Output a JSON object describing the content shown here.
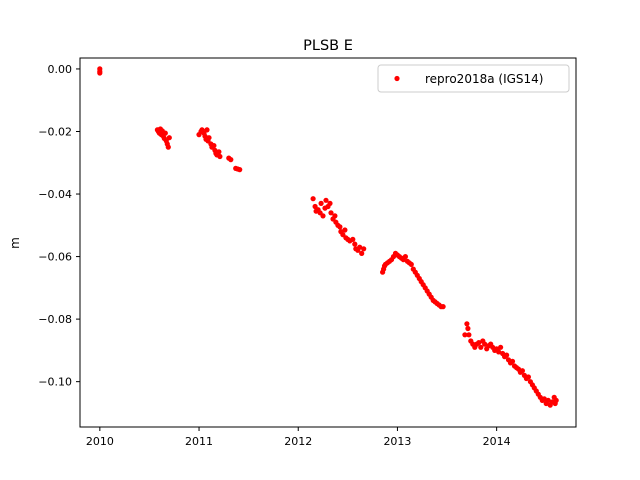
{
  "chart_data": {
    "type": "scatter",
    "title": "PLSB E",
    "xlabel": "",
    "ylabel": "m",
    "xlim": [
      2009.8,
      2014.8
    ],
    "ylim": [
      -0.1145,
      0.0035
    ],
    "x_ticks": [
      2010,
      2011,
      2012,
      2013,
      2014
    ],
    "y_ticks": [
      0.0,
      -0.02,
      -0.04,
      -0.06,
      -0.08,
      -0.1
    ],
    "x_tick_labels": [
      "2010",
      "2011",
      "2012",
      "2013",
      "2014"
    ],
    "y_tick_labels": [
      "0.00",
      "−0.02",
      "−0.04",
      "−0.06",
      "−0.08",
      "−0.10"
    ],
    "grid": false,
    "legend": {
      "position": "top-right",
      "entries": [
        "repro2018a (IGS14)"
      ]
    },
    "series": [
      {
        "name": "repro2018a (IGS14)",
        "color": "#ff0000",
        "marker": "circle",
        "points": [
          [
            2010.0,
            0.0
          ],
          [
            2010.0,
            -0.0008
          ],
          [
            2010.0,
            -0.0013
          ],
          [
            2010.58,
            -0.0195
          ],
          [
            2010.59,
            -0.02
          ],
          [
            2010.6,
            -0.0205
          ],
          [
            2010.61,
            -0.0192
          ],
          [
            2010.62,
            -0.021
          ],
          [
            2010.63,
            -0.0198
          ],
          [
            2010.64,
            -0.0215
          ],
          [
            2010.65,
            -0.0222
          ],
          [
            2010.66,
            -0.0205
          ],
          [
            2010.67,
            -0.023
          ],
          [
            2010.68,
            -0.024
          ],
          [
            2010.69,
            -0.025
          ],
          [
            2010.7,
            -0.022
          ],
          [
            2011.0,
            -0.021
          ],
          [
            2011.02,
            -0.02
          ],
          [
            2011.03,
            -0.0195
          ],
          [
            2011.05,
            -0.0205
          ],
          [
            2011.06,
            -0.0215
          ],
          [
            2011.07,
            -0.0225
          ],
          [
            2011.08,
            -0.0195
          ],
          [
            2011.09,
            -0.023
          ],
          [
            2011.1,
            -0.022
          ],
          [
            2011.12,
            -0.024
          ],
          [
            2011.13,
            -0.025
          ],
          [
            2011.15,
            -0.0245
          ],
          [
            2011.16,
            -0.026
          ],
          [
            2011.17,
            -0.027
          ],
          [
            2011.18,
            -0.0275
          ],
          [
            2011.2,
            -0.0265
          ],
          [
            2011.21,
            -0.028
          ],
          [
            2011.3,
            -0.0285
          ],
          [
            2011.32,
            -0.029
          ],
          [
            2011.37,
            -0.0318
          ],
          [
            2011.39,
            -0.032
          ],
          [
            2011.41,
            -0.0322
          ],
          [
            2012.15,
            -0.0415
          ],
          [
            2012.17,
            -0.044
          ],
          [
            2012.18,
            -0.0455
          ],
          [
            2012.2,
            -0.045
          ],
          [
            2012.22,
            -0.046
          ],
          [
            2012.23,
            -0.043
          ],
          [
            2012.25,
            -0.047
          ],
          [
            2012.27,
            -0.0445
          ],
          [
            2012.28,
            -0.042
          ],
          [
            2012.3,
            -0.044
          ],
          [
            2012.32,
            -0.043
          ],
          [
            2012.33,
            -0.046
          ],
          [
            2012.35,
            -0.048
          ],
          [
            2012.37,
            -0.047
          ],
          [
            2012.38,
            -0.049
          ],
          [
            2012.4,
            -0.05
          ],
          [
            2012.42,
            -0.0505
          ],
          [
            2012.43,
            -0.052
          ],
          [
            2012.45,
            -0.053
          ],
          [
            2012.47,
            -0.0515
          ],
          [
            2012.48,
            -0.054
          ],
          [
            2012.5,
            -0.0545
          ],
          [
            2012.52,
            -0.055
          ],
          [
            2012.55,
            -0.0545
          ],
          [
            2012.57,
            -0.056
          ],
          [
            2012.58,
            -0.0575
          ],
          [
            2012.6,
            -0.058
          ],
          [
            2012.62,
            -0.057
          ],
          [
            2012.64,
            -0.059
          ],
          [
            2012.66,
            -0.0575
          ],
          [
            2012.85,
            -0.065
          ],
          [
            2012.86,
            -0.064
          ],
          [
            2012.87,
            -0.063
          ],
          [
            2012.88,
            -0.0625
          ],
          [
            2012.9,
            -0.062
          ],
          [
            2012.92,
            -0.0615
          ],
          [
            2012.94,
            -0.061
          ],
          [
            2012.96,
            -0.06
          ],
          [
            2012.98,
            -0.059
          ],
          [
            2013.0,
            -0.0595
          ],
          [
            2013.02,
            -0.06
          ],
          [
            2013.04,
            -0.0605
          ],
          [
            2013.06,
            -0.061
          ],
          [
            2013.08,
            -0.06
          ],
          [
            2013.1,
            -0.0615
          ],
          [
            2013.12,
            -0.062
          ],
          [
            2013.14,
            -0.0625
          ],
          [
            2013.16,
            -0.064
          ],
          [
            2013.18,
            -0.065
          ],
          [
            2013.2,
            -0.066
          ],
          [
            2013.22,
            -0.067
          ],
          [
            2013.24,
            -0.068
          ],
          [
            2013.26,
            -0.069
          ],
          [
            2013.28,
            -0.07
          ],
          [
            2013.3,
            -0.071
          ],
          [
            2013.32,
            -0.072
          ],
          [
            2013.34,
            -0.073
          ],
          [
            2013.36,
            -0.074
          ],
          [
            2013.38,
            -0.0745
          ],
          [
            2013.4,
            -0.075
          ],
          [
            2013.42,
            -0.0755
          ],
          [
            2013.44,
            -0.076
          ],
          [
            2013.46,
            -0.076
          ],
          [
            2013.68,
            -0.085
          ],
          [
            2013.7,
            -0.0815
          ],
          [
            2013.71,
            -0.083
          ],
          [
            2013.72,
            -0.085
          ],
          [
            2013.74,
            -0.087
          ],
          [
            2013.76,
            -0.088
          ],
          [
            2013.78,
            -0.089
          ],
          [
            2013.8,
            -0.088
          ],
          [
            2013.82,
            -0.0875
          ],
          [
            2013.84,
            -0.089
          ],
          [
            2013.86,
            -0.087
          ],
          [
            2013.88,
            -0.088
          ],
          [
            2013.9,
            -0.0895
          ],
          [
            2013.92,
            -0.0885
          ],
          [
            2013.94,
            -0.088
          ],
          [
            2013.96,
            -0.089
          ],
          [
            2013.98,
            -0.09
          ],
          [
            2014.0,
            -0.0895
          ],
          [
            2014.02,
            -0.0905
          ],
          [
            2014.04,
            -0.089
          ],
          [
            2014.06,
            -0.091
          ],
          [
            2014.08,
            -0.092
          ],
          [
            2014.1,
            -0.0915
          ],
          [
            2014.12,
            -0.093
          ],
          [
            2014.14,
            -0.094
          ],
          [
            2014.16,
            -0.0935
          ],
          [
            2014.18,
            -0.095
          ],
          [
            2014.2,
            -0.0955
          ],
          [
            2014.22,
            -0.096
          ],
          [
            2014.24,
            -0.097
          ],
          [
            2014.26,
            -0.0965
          ],
          [
            2014.28,
            -0.098
          ],
          [
            2014.3,
            -0.099
          ],
          [
            2014.32,
            -0.0985
          ],
          [
            2014.34,
            -0.1
          ],
          [
            2014.36,
            -0.101
          ],
          [
            2014.38,
            -0.102
          ],
          [
            2014.4,
            -0.103
          ],
          [
            2014.42,
            -0.104
          ],
          [
            2014.44,
            -0.105
          ],
          [
            2014.46,
            -0.106
          ],
          [
            2014.48,
            -0.1055
          ],
          [
            2014.5,
            -0.107
          ],
          [
            2014.52,
            -0.106
          ],
          [
            2014.54,
            -0.1075
          ],
          [
            2014.56,
            -0.1065
          ],
          [
            2014.58,
            -0.105
          ],
          [
            2014.59,
            -0.107
          ],
          [
            2014.6,
            -0.106
          ]
        ]
      }
    ]
  }
}
